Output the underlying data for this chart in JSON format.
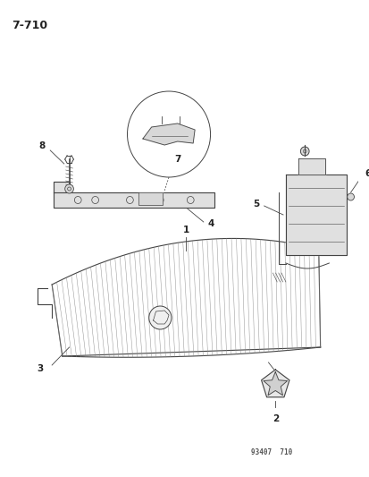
{
  "page_id": "7-710",
  "doc_id": "93407  710",
  "bg_color": "#ffffff",
  "line_color": "#444444",
  "label_color": "#222222",
  "fig_width": 4.14,
  "fig_height": 5.33,
  "dpi": 100
}
